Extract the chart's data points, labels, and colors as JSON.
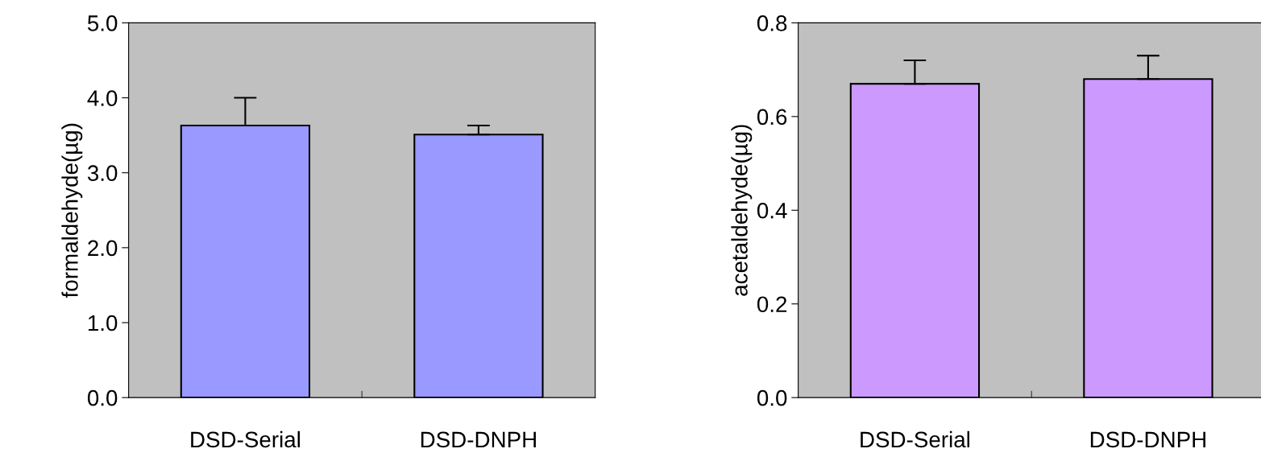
{
  "chart_data": [
    {
      "type": "bar",
      "ylabel": "formaldehyde(µg)",
      "categories": [
        "DSD-Serial",
        "DSD-DNPH"
      ],
      "values": [
        3.63,
        3.51
      ],
      "errors": [
        [
          3.63,
          4.0
        ],
        [
          3.51,
          3.63
        ]
      ],
      "color": "#9999ff",
      "ylim": [
        0,
        5
      ],
      "yticks": [
        {
          "value": 0,
          "label": "0.0"
        },
        {
          "value": 1,
          "label": "1.0"
        },
        {
          "value": 2,
          "label": "2.0"
        },
        {
          "value": 3,
          "label": "3.0"
        },
        {
          "value": 4,
          "label": "4.0"
        },
        {
          "value": 5,
          "label": "5.0"
        }
      ],
      "grid": false,
      "legend": false
    },
    {
      "type": "bar",
      "ylabel": "acetaldehyde(µg)",
      "categories": [
        "DSD-Serial",
        "DSD-DNPH"
      ],
      "values": [
        0.67,
        0.68
      ],
      "errors": [
        [
          0.67,
          0.72
        ],
        [
          0.68,
          0.73
        ]
      ],
      "color": "#cc99ff",
      "ylim": [
        0,
        0.8
      ],
      "yticks": [
        {
          "value": 0,
          "label": "0.0"
        },
        {
          "value": 0.2,
          "label": "0.2"
        },
        {
          "value": 0.4,
          "label": "0.4"
        },
        {
          "value": 0.6,
          "label": "0.6"
        },
        {
          "value": 0.8,
          "label": "0.8"
        }
      ],
      "grid": false,
      "legend": false
    }
  ]
}
